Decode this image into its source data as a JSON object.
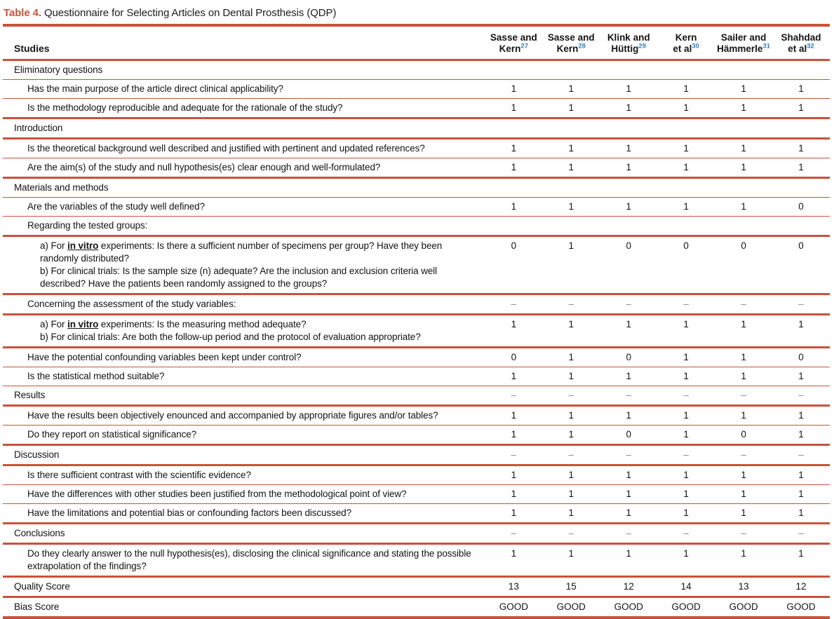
{
  "title": {
    "label": "Table 4.",
    "text": "Questionnaire for Selecting Articles on Dental Prosthesis (QDP)"
  },
  "colors": {
    "accent": "#C9523C",
    "superscript_blue": "#2F7FB9",
    "dash_gray": "#8A8A8A"
  },
  "table": {
    "studies_header": "Studies",
    "columns": [
      {
        "lines": [
          "Sasse and",
          "Kern"
        ],
        "ref": "27"
      },
      {
        "lines": [
          "Sasse and",
          "Kern"
        ],
        "ref": "28"
      },
      {
        "lines": [
          "Klink and",
          "Hüttig"
        ],
        "ref": "29"
      },
      {
        "lines": [
          "Kern",
          "et al"
        ],
        "ref": "30"
      },
      {
        "lines": [
          "Sailer and",
          "Hämmerle"
        ],
        "ref": "31"
      },
      {
        "lines": [
          "Shahdad",
          "et al"
        ],
        "ref": "32"
      }
    ],
    "rows": [
      {
        "type": "section",
        "rule": "thick",
        "segments": [
          {
            "t": "Eliminatory questions"
          }
        ],
        "values": [
          "",
          "",
          "",
          "",
          "",
          ""
        ]
      },
      {
        "type": "question",
        "rule": "thin",
        "segments": [
          {
            "t": "Has the main purpose of the article direct clinical applicability?"
          }
        ],
        "values": [
          "1",
          "1",
          "1",
          "1",
          "1",
          "1"
        ]
      },
      {
        "type": "question",
        "rule": "thin",
        "segments": [
          {
            "t": "Is the methodology reproducible and adequate for the rationale of the study?"
          }
        ],
        "values": [
          "1",
          "1",
          "1",
          "1",
          "1",
          "1"
        ]
      },
      {
        "type": "section",
        "rule": "thick",
        "segments": [
          {
            "t": "Introduction"
          }
        ],
        "values": [
          "",
          "",
          "",
          "",
          "",
          ""
        ]
      },
      {
        "type": "question",
        "rule": "thick",
        "segments": [
          {
            "t": "Is the theoretical background well described and justified with pertinent and updated references?"
          }
        ],
        "values": [
          "1",
          "1",
          "1",
          "1",
          "1",
          "1"
        ]
      },
      {
        "type": "question",
        "rule": "thin",
        "segments": [
          {
            "t": "Are the aim(s) of the study and null hypothesis(es) clear enough and well-formulated?"
          }
        ],
        "values": [
          "1",
          "1",
          "1",
          "1",
          "1",
          "1"
        ]
      },
      {
        "type": "section",
        "rule": "thick",
        "segments": [
          {
            "t": "Materials and methods"
          }
        ],
        "values": [
          "",
          "",
          "",
          "",
          "",
          ""
        ]
      },
      {
        "type": "question",
        "rule": "thin",
        "segments": [
          {
            "t": "Are the variables of the study well defined?"
          }
        ],
        "values": [
          "1",
          "1",
          "1",
          "1",
          "1",
          "0"
        ]
      },
      {
        "type": "question",
        "rule": "thin",
        "segments": [
          {
            "t": "Regarding the tested groups:"
          }
        ],
        "values": [
          "",
          "",
          "",
          "",
          "",
          ""
        ]
      },
      {
        "type": "subquestion",
        "rule": "thick",
        "segments": [
          {
            "t": "a) For "
          },
          {
            "t": "in vitro",
            "em": true
          },
          {
            "t": " experiments: Is there a sufficient number of specimens per group? Have they been randomly distributed?"
          },
          {
            "br": true
          },
          {
            "t": "b) For clinical trials: Is the sample size (n) adequate? Are the inclusion and exclusion criteria well described? Have the patients been randomly assigned to the groups?"
          }
        ],
        "values": [
          "0",
          "1",
          "0",
          "0",
          "0",
          "0"
        ]
      },
      {
        "type": "question",
        "rule": "thick",
        "segments": [
          {
            "t": "Concerning the assessment of the study variables:"
          }
        ],
        "values": [
          "–",
          "–",
          "–",
          "–",
          "–",
          "–"
        ]
      },
      {
        "type": "subquestion",
        "rule": "thick",
        "segments": [
          {
            "t": "a) For "
          },
          {
            "t": "in vitro",
            "em": true
          },
          {
            "t": " experiments: Is the measuring method adequate?"
          },
          {
            "br": true
          },
          {
            "t": "b) For clinical trials: Are both the follow-up period and the protocol of evaluation appropriate?"
          }
        ],
        "values": [
          "1",
          "1",
          "1",
          "1",
          "1",
          "1"
        ]
      },
      {
        "type": "question",
        "rule": "thick",
        "segments": [
          {
            "t": "Have the potential confounding variables been kept under control?"
          }
        ],
        "values": [
          "0",
          "1",
          "0",
          "1",
          "1",
          "0"
        ]
      },
      {
        "type": "question",
        "rule": "thin",
        "segments": [
          {
            "t": "Is the statistical method suitable?"
          }
        ],
        "values": [
          "1",
          "1",
          "1",
          "1",
          "1",
          "1"
        ]
      },
      {
        "type": "section",
        "rule": "thin",
        "segments": [
          {
            "t": "Results"
          }
        ],
        "values": [
          "–",
          "–",
          "–",
          "–",
          "–",
          "–"
        ]
      },
      {
        "type": "question",
        "rule": "thick",
        "segments": [
          {
            "t": "Have the results been objectively enounced and accompanied by appropriate figures and/or tables?"
          }
        ],
        "values": [
          "1",
          "1",
          "1",
          "1",
          "1",
          "1"
        ]
      },
      {
        "type": "question",
        "rule": "thin",
        "segments": [
          {
            "t": "Do they report on statistical significance?"
          }
        ],
        "values": [
          "1",
          "1",
          "0",
          "1",
          "0",
          "1"
        ]
      },
      {
        "type": "section",
        "rule": "thick",
        "segments": [
          {
            "t": "Discussion"
          }
        ],
        "values": [
          "–",
          "–",
          "–",
          "–",
          "–",
          "–"
        ]
      },
      {
        "type": "question",
        "rule": "thick",
        "segments": [
          {
            "t": "Is there sufficient contrast with the scientific evidence?"
          }
        ],
        "values": [
          "1",
          "1",
          "1",
          "1",
          "1",
          "1"
        ]
      },
      {
        "type": "question",
        "rule": "thin",
        "segments": [
          {
            "t": "Have the differences with other studies been justified from the methodological point of view?"
          }
        ],
        "values": [
          "1",
          "1",
          "1",
          "1",
          "1",
          "1"
        ]
      },
      {
        "type": "question",
        "rule": "thin",
        "segments": [
          {
            "t": "Have the limitations and potential bias or confounding factors been discussed?"
          }
        ],
        "values": [
          "1",
          "1",
          "1",
          "1",
          "1",
          "1"
        ]
      },
      {
        "type": "section",
        "rule": "thick",
        "segments": [
          {
            "t": "Conclusions"
          }
        ],
        "values": [
          "–",
          "–",
          "–",
          "–",
          "–",
          "–"
        ]
      },
      {
        "type": "question",
        "rule": "thick",
        "segments": [
          {
            "t": "Do they clearly answer to the null hypothesis(es), disclosing the clinical significance and stating the possible extrapolation of the findings?"
          }
        ],
        "values": [
          "1",
          "1",
          "1",
          "1",
          "1",
          "1"
        ]
      },
      {
        "type": "section",
        "rule": "thick",
        "segments": [
          {
            "t": "Quality Score"
          }
        ],
        "values": [
          "13",
          "15",
          "12",
          "14",
          "13",
          "12"
        ]
      },
      {
        "type": "section",
        "rule": "thick",
        "segments": [
          {
            "t": "Bias Score"
          }
        ],
        "values": [
          "GOOD",
          "GOOD",
          "GOOD",
          "GOOD",
          "GOOD",
          "GOOD"
        ]
      }
    ]
  }
}
